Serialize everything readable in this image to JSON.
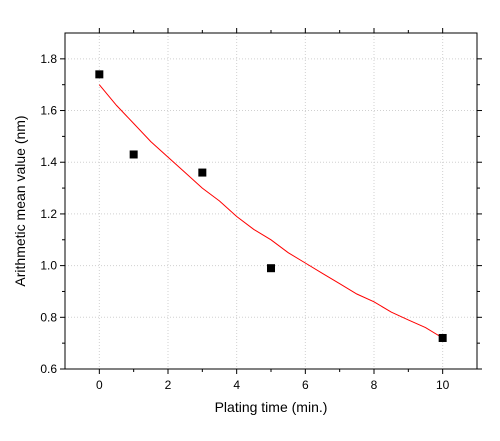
{
  "chart_data": {
    "type": "scatter",
    "title": "",
    "xlabel": "Plating time (min.)",
    "ylabel": "Arithmetic mean value (nm)",
    "xlim": [
      -1,
      11
    ],
    "ylim": [
      0.6,
      1.9
    ],
    "xticks": [
      0,
      2,
      4,
      6,
      8,
      10
    ],
    "yticks": [
      0.6,
      0.8,
      1.0,
      1.2,
      1.4,
      1.6,
      1.8
    ],
    "xtick_labels": [
      "0",
      "2",
      "4",
      "6",
      "8",
      "10"
    ],
    "ytick_labels": [
      "0.6",
      "0.8",
      "1.0",
      "1.2",
      "1.4",
      "1.6",
      "1.8"
    ],
    "grid": "dotted",
    "series": [
      {
        "type": "scatter",
        "marker": "square",
        "color": "#000000",
        "x": [
          0,
          1,
          3,
          5,
          10
        ],
        "y": [
          1.74,
          1.43,
          1.36,
          0.99,
          0.72
        ]
      },
      {
        "type": "line",
        "color": "#ff0000",
        "x": [
          0,
          0.5,
          1,
          1.5,
          2,
          2.5,
          3,
          3.5,
          4,
          4.5,
          5,
          5.5,
          6,
          6.5,
          7,
          7.5,
          8,
          8.5,
          9,
          9.5,
          10
        ],
        "y": [
          1.7,
          1.62,
          1.55,
          1.48,
          1.42,
          1.36,
          1.3,
          1.25,
          1.19,
          1.14,
          1.1,
          1.05,
          1.01,
          0.97,
          0.93,
          0.89,
          0.86,
          0.82,
          0.79,
          0.76,
          0.72
        ]
      }
    ]
  }
}
